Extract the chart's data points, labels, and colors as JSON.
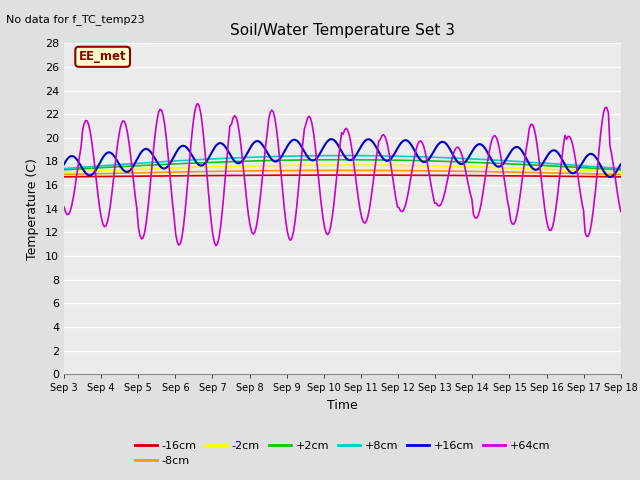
{
  "title": "Soil/Water Temperature Set 3",
  "xlabel": "Time",
  "ylabel": "Temperature (C)",
  "no_data_text": "No data for f_TC_temp23",
  "ee_met_label": "EE_met",
  "ylim": [
    0,
    28
  ],
  "yticks": [
    0,
    2,
    4,
    6,
    8,
    10,
    12,
    14,
    16,
    18,
    20,
    22,
    24,
    26,
    28
  ],
  "x_labels": [
    "Sep 3",
    "Sep 4",
    "Sep 5",
    "Sep 6",
    "Sep 7",
    "Sep 8",
    "Sep 9",
    "Sep 10",
    "Sep 11",
    "Sep 12",
    "Sep 13",
    "Sep 14",
    "Sep 15",
    "Sep 16",
    "Sep 17",
    "Sep 18"
  ],
  "series": {
    "m16cm": {
      "label": "-16cm",
      "color": "#cc0000"
    },
    "m8cm": {
      "label": "-8cm",
      "color": "#ff9900"
    },
    "m2cm": {
      "label": "-2cm",
      "color": "#ffff00"
    },
    "p2cm": {
      "label": "+2cm",
      "color": "#00cc00"
    },
    "p8cm": {
      "label": "+8cm",
      "color": "#00cccc"
    },
    "p16cm": {
      "label": "+16cm",
      "color": "#0000cc"
    },
    "p64cm": {
      "label": "+64cm",
      "color": "#cc00cc"
    }
  },
  "bg_color": "#e0e0e0",
  "plot_bg_color": "#ebebeb"
}
